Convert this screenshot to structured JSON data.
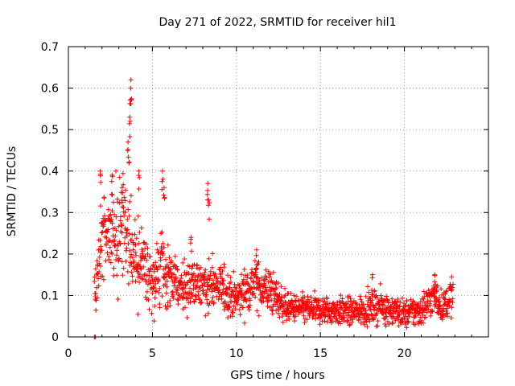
{
  "chart_data": {
    "type": "scatter",
    "title": "Day 271 of 2022, SRMTID for receiver hil1",
    "xlabel": "GPS time / hours",
    "ylabel": "SRMTID / TECUs",
    "xlim": [
      0,
      25
    ],
    "ylim": [
      0,
      0.7
    ],
    "xticks": [
      0,
      5,
      10,
      15,
      20
    ],
    "yticks": [
      0,
      0.1,
      0.2,
      0.3,
      0.4,
      0.5,
      0.6,
      0.7
    ],
    "xtick_labels": [
      "0",
      "5",
      "10",
      "15",
      "20"
    ],
    "ytick_labels": [
      "0",
      "0.1",
      "0.2",
      "0.3",
      "0.4",
      "0.5",
      "0.6",
      "0.7"
    ],
    "grid": true,
    "marker": "+",
    "marker_color": "#ff0000",
    "isolated_points": [
      {
        "x": 1.55,
        "y": 0.0
      },
      {
        "x": 1.6,
        "y": 0.0
      }
    ],
    "trend": [
      {
        "x": 1.6,
        "y": 0.11,
        "spread": 0.06
      },
      {
        "x": 2.0,
        "y": 0.25,
        "spread": 0.1
      },
      {
        "x": 2.5,
        "y": 0.27,
        "spread": 0.1
      },
      {
        "x": 3.0,
        "y": 0.26,
        "spread": 0.11
      },
      {
        "x": 3.5,
        "y": 0.27,
        "spread": 0.13
      },
      {
        "x": 4.0,
        "y": 0.2,
        "spread": 0.09
      },
      {
        "x": 4.5,
        "y": 0.17,
        "spread": 0.07
      },
      {
        "x": 5.0,
        "y": 0.13,
        "spread": 0.06
      },
      {
        "x": 5.5,
        "y": 0.16,
        "spread": 0.08
      },
      {
        "x": 6.0,
        "y": 0.14,
        "spread": 0.06
      },
      {
        "x": 7.0,
        "y": 0.12,
        "spread": 0.05
      },
      {
        "x": 8.0,
        "y": 0.13,
        "spread": 0.06
      },
      {
        "x": 9.0,
        "y": 0.12,
        "spread": 0.05
      },
      {
        "x": 10.0,
        "y": 0.09,
        "spread": 0.045
      },
      {
        "x": 11.0,
        "y": 0.13,
        "spread": 0.05
      },
      {
        "x": 12.0,
        "y": 0.11,
        "spread": 0.05
      },
      {
        "x": 13.0,
        "y": 0.07,
        "spread": 0.03
      },
      {
        "x": 15.0,
        "y": 0.065,
        "spread": 0.03
      },
      {
        "x": 17.0,
        "y": 0.06,
        "spread": 0.03
      },
      {
        "x": 18.5,
        "y": 0.075,
        "spread": 0.035
      },
      {
        "x": 20.0,
        "y": 0.055,
        "spread": 0.03
      },
      {
        "x": 21.0,
        "y": 0.065,
        "spread": 0.035
      },
      {
        "x": 21.8,
        "y": 0.1,
        "spread": 0.04
      },
      {
        "x": 22.3,
        "y": 0.07,
        "spread": 0.03
      },
      {
        "x": 22.8,
        "y": 0.1,
        "spread": 0.04
      }
    ],
    "peaks": [
      {
        "x": 1.9,
        "y": 0.4
      },
      {
        "x": 2.6,
        "y": 0.39
      },
      {
        "x": 3.2,
        "y": 0.36
      },
      {
        "x": 3.55,
        "y": 0.47
      },
      {
        "x": 3.65,
        "y": 0.53
      },
      {
        "x": 3.7,
        "y": 0.6
      },
      {
        "x": 3.72,
        "y": 0.62
      },
      {
        "x": 4.2,
        "y": 0.4
      },
      {
        "x": 5.6,
        "y": 0.4
      },
      {
        "x": 5.7,
        "y": 0.36
      },
      {
        "x": 7.3,
        "y": 0.24
      },
      {
        "x": 8.3,
        "y": 0.37
      },
      {
        "x": 8.35,
        "y": 0.33
      },
      {
        "x": 11.2,
        "y": 0.21
      },
      {
        "x": 18.1,
        "y": 0.15
      },
      {
        "x": 21.8,
        "y": 0.15
      }
    ],
    "n_points": 1600,
    "x_range_data": [
      1.55,
      22.9
    ]
  }
}
